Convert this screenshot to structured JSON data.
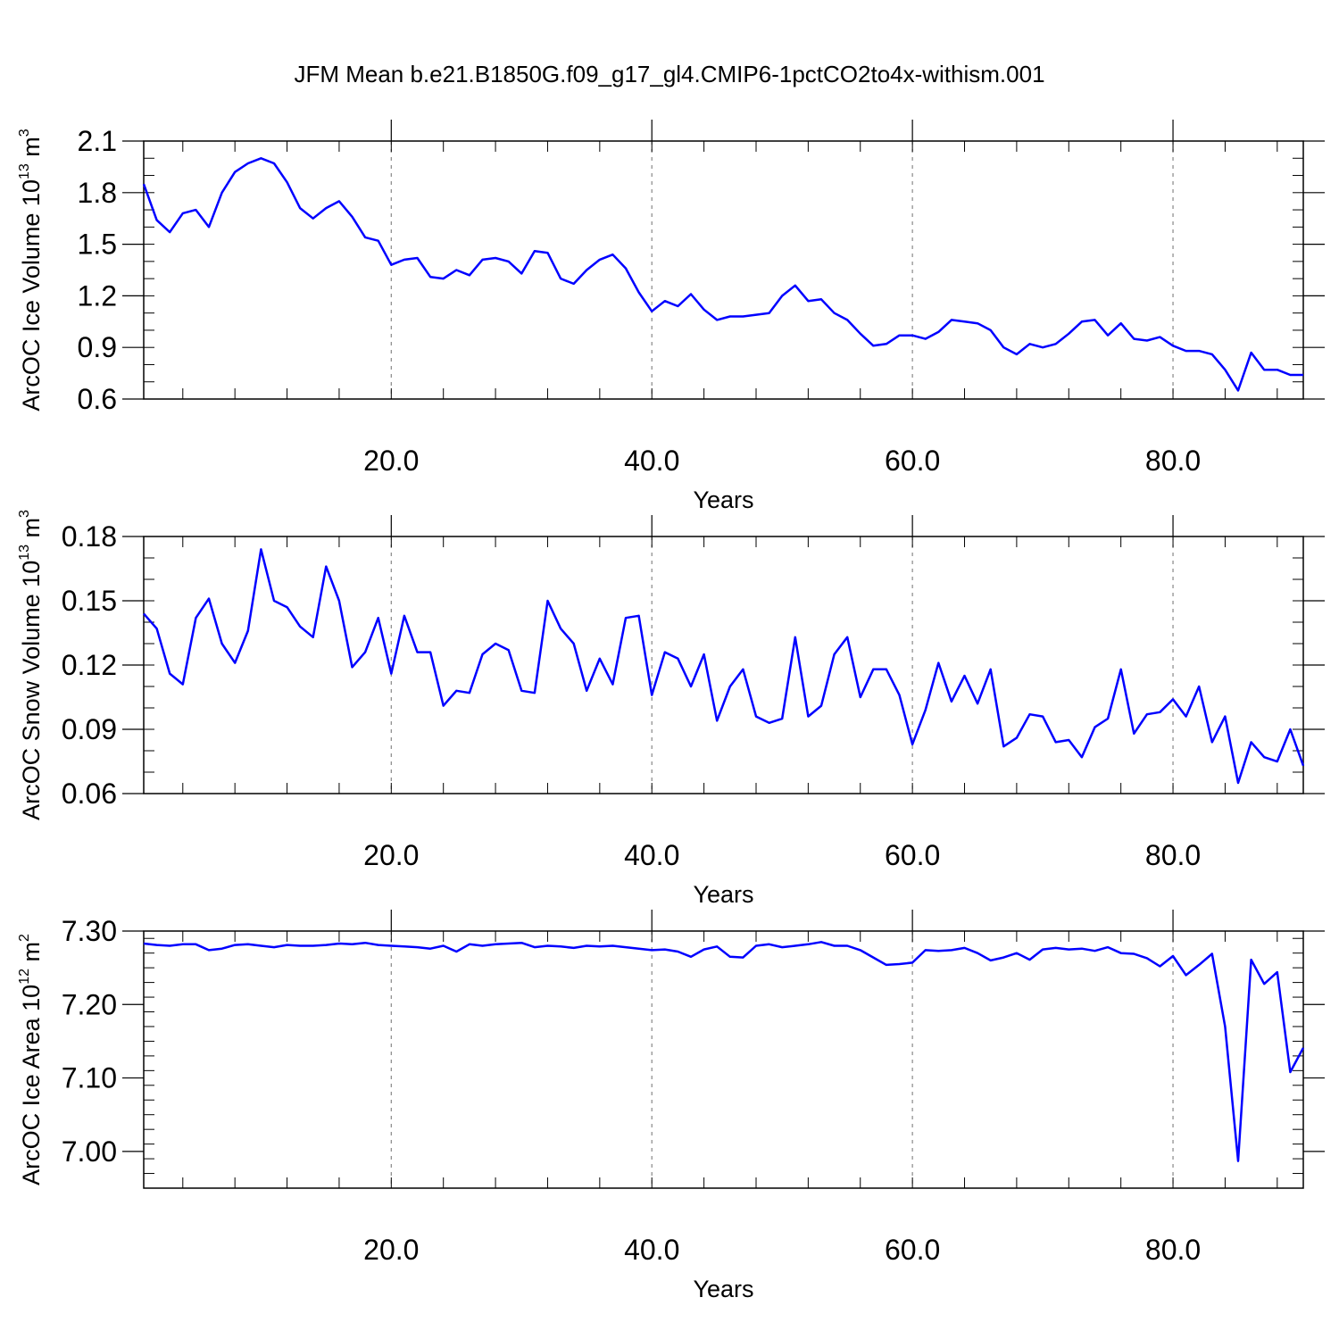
{
  "title": "JFM Mean b.e21.B1850G.f09_g17_gl4.CMIP6-1pctCO2to4x-withism.001",
  "chart_data": [
    {
      "type": "line",
      "xlabel": "Years",
      "ylabel": {
        "text": "ArcOC Ice Volume 10",
        "exp": "13",
        "unit": " m",
        "unit_exp": "3"
      },
      "xlim": [
        1,
        90
      ],
      "ylim": [
        0.6,
        2.1
      ],
      "xticks": [
        20,
        40,
        60,
        80
      ],
      "xtick_labels": [
        "20.0",
        "40.0",
        "60.0",
        "80.0"
      ],
      "yticks": [
        0.6,
        0.9,
        1.2,
        1.5,
        1.8,
        2.1
      ],
      "ytick_labels": [
        "0.6",
        "0.9",
        "1.2",
        "1.5",
        "1.8",
        "2.1"
      ],
      "ytick_minor_step": 0.1,
      "xtick_minor_step": 4,
      "grid": "dashed-vertical",
      "color": "#0000ff",
      "x_start": 1,
      "values": [
        1.85,
        1.64,
        1.57,
        1.68,
        1.7,
        1.6,
        1.8,
        1.92,
        1.97,
        2.0,
        1.97,
        1.86,
        1.71,
        1.65,
        1.71,
        1.75,
        1.66,
        1.54,
        1.52,
        1.38,
        1.41,
        1.42,
        1.31,
        1.3,
        1.35,
        1.32,
        1.41,
        1.42,
        1.4,
        1.33,
        1.46,
        1.45,
        1.3,
        1.27,
        1.35,
        1.41,
        1.44,
        1.36,
        1.22,
        1.11,
        1.17,
        1.14,
        1.21,
        1.12,
        1.06,
        1.08,
        1.08,
        1.09,
        1.1,
        1.2,
        1.26,
        1.17,
        1.18,
        1.1,
        1.06,
        0.98,
        0.91,
        0.92,
        0.97,
        0.97,
        0.95,
        0.99,
        1.06,
        1.05,
        1.04,
        1.0,
        0.9,
        0.86,
        0.92,
        0.9,
        0.92,
        0.98,
        1.05,
        1.06,
        0.97,
        1.04,
        0.95,
        0.94,
        0.96,
        0.91,
        0.88,
        0.88,
        0.86,
        0.77,
        0.65,
        0.87,
        0.77,
        0.77,
        0.74,
        0.74
      ]
    },
    {
      "type": "line",
      "xlabel": "Years",
      "ylabel": {
        "text": "ArcOC Snow Volume 10",
        "exp": "13",
        "unit": " m",
        "unit_exp": "3"
      },
      "xlim": [
        1,
        90
      ],
      "ylim": [
        0.06,
        0.18
      ],
      "xticks": [
        20,
        40,
        60,
        80
      ],
      "xtick_labels": [
        "20.0",
        "40.0",
        "60.0",
        "80.0"
      ],
      "yticks": [
        0.06,
        0.09,
        0.12,
        0.15,
        0.18
      ],
      "ytick_labels": [
        "0.06",
        "0.09",
        "0.12",
        "0.15",
        "0.18"
      ],
      "ytick_minor_step": 0.01,
      "xtick_minor_step": 4,
      "grid": "dashed-vertical",
      "color": "#0000ff",
      "x_start": 1,
      "values": [
        0.144,
        0.137,
        0.116,
        0.111,
        0.142,
        0.151,
        0.13,
        0.121,
        0.136,
        0.174,
        0.15,
        0.147,
        0.138,
        0.133,
        0.166,
        0.15,
        0.119,
        0.126,
        0.142,
        0.116,
        0.143,
        0.126,
        0.126,
        0.101,
        0.108,
        0.107,
        0.125,
        0.13,
        0.127,
        0.108,
        0.107,
        0.15,
        0.137,
        0.13,
        0.108,
        0.123,
        0.111,
        0.142,
        0.143,
        0.106,
        0.126,
        0.123,
        0.11,
        0.125,
        0.094,
        0.11,
        0.118,
        0.096,
        0.093,
        0.095,
        0.133,
        0.096,
        0.101,
        0.125,
        0.133,
        0.105,
        0.118,
        0.118,
        0.106,
        0.083,
        0.099,
        0.121,
        0.103,
        0.115,
        0.102,
        0.118,
        0.082,
        0.086,
        0.097,
        0.096,
        0.084,
        0.085,
        0.077,
        0.091,
        0.095,
        0.118,
        0.088,
        0.097,
        0.098,
        0.104,
        0.096,
        0.11,
        0.084,
        0.096,
        0.065,
        0.084,
        0.077,
        0.075,
        0.09,
        0.073
      ]
    },
    {
      "type": "line",
      "xlabel": "Years",
      "ylabel": {
        "text": "ArcOC Ice Area 10",
        "exp": "12",
        "unit": " m",
        "unit_exp": "2"
      },
      "xlim": [
        1,
        90
      ],
      "ylim": [
        6.95,
        7.3
      ],
      "xticks": [
        20,
        40,
        60,
        80
      ],
      "xtick_labels": [
        "20.0",
        "40.0",
        "60.0",
        "80.0"
      ],
      "yticks": [
        7.0,
        7.1,
        7.2,
        7.3
      ],
      "ytick_labels": [
        "7.00",
        "7.10",
        "7.20",
        "7.30"
      ],
      "ytick_minor_step": 0.02,
      "xtick_minor_step": 4,
      "grid": "dashed-vertical",
      "color": "#0000ff",
      "x_start": 1,
      "values": [
        7.283,
        7.281,
        7.28,
        7.282,
        7.282,
        7.274,
        7.276,
        7.281,
        7.282,
        7.28,
        7.278,
        7.281,
        7.28,
        7.28,
        7.281,
        7.283,
        7.282,
        7.284,
        7.281,
        7.28,
        7.279,
        7.278,
        7.276,
        7.28,
        7.272,
        7.282,
        7.28,
        7.282,
        7.283,
        7.284,
        7.278,
        7.28,
        7.279,
        7.277,
        7.28,
        7.279,
        7.28,
        7.278,
        7.276,
        7.274,
        7.275,
        7.272,
        7.265,
        7.275,
        7.279,
        7.265,
        7.264,
        7.28,
        7.282,
        7.278,
        7.28,
        7.282,
        7.285,
        7.28,
        7.28,
        7.274,
        7.264,
        7.254,
        7.255,
        7.257,
        7.274,
        7.273,
        7.274,
        7.277,
        7.27,
        7.26,
        7.264,
        7.27,
        7.261,
        7.275,
        7.277,
        7.275,
        7.276,
        7.273,
        7.278,
        7.27,
        7.269,
        7.263,
        7.252,
        7.266,
        7.24,
        7.254,
        7.269,
        7.17,
        6.987,
        7.261,
        7.228,
        7.244,
        7.108,
        7.141
      ]
    }
  ]
}
